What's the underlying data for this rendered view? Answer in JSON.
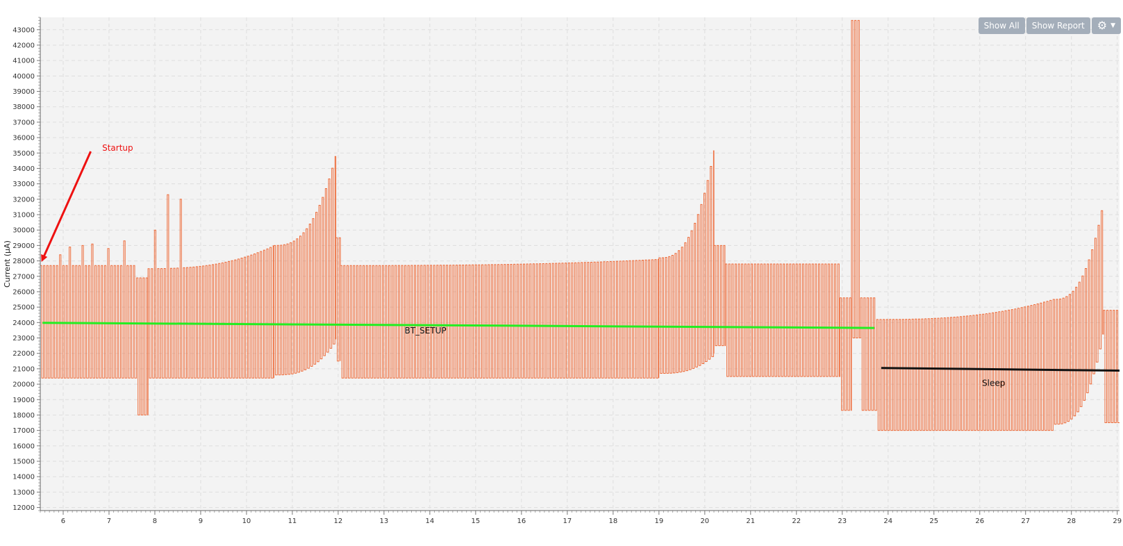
{
  "toolbar": {
    "show_all_label": "Show All",
    "show_report_label": "Show Report",
    "settings_icon": "gear-icon",
    "settings_caret_icon": "caret-down-icon"
  },
  "chart_data": {
    "type": "line",
    "title": "",
    "xlabel": "",
    "ylabel": "Current (µA)",
    "xlim": [
      5.5,
      29.05
    ],
    "ylim": [
      11800,
      43800
    ],
    "x_ticks": [
      6,
      7,
      8,
      9,
      10,
      11,
      12,
      13,
      14,
      15,
      16,
      17,
      18,
      19,
      20,
      21,
      22,
      23,
      24,
      25,
      26,
      27,
      28,
      29
    ],
    "y_ticks": [
      12000,
      13000,
      14000,
      15000,
      16000,
      17000,
      18000,
      19000,
      20000,
      21000,
      22000,
      23000,
      24000,
      25000,
      26000,
      27000,
      28000,
      29000,
      30000,
      31000,
      32000,
      33000,
      34000,
      35000,
      36000,
      37000,
      38000,
      39000,
      40000,
      41000,
      42000,
      43000
    ],
    "grid": true,
    "colors": {
      "signal": "#ee6a38",
      "bt_setup": "#22ee22",
      "sleep": "#111111",
      "startup": "#ee1111",
      "plot_bg": "#f3f3f3",
      "grid": "#dedede"
    },
    "series": [
      {
        "segments": [
          {
            "x0": 5.5,
            "x1": 7.6,
            "low": 20400,
            "high": 27700,
            "spikes": [
              [
                5.9,
                28400
              ],
              [
                6.15,
                28900
              ],
              [
                6.4,
                29000
              ],
              [
                6.65,
                29100
              ],
              [
                6.95,
                28800
              ],
              [
                7.35,
                29300
              ]
            ]
          },
          {
            "x0": 7.6,
            "x1": 7.85,
            "low": 18000,
            "high": 26900
          },
          {
            "x0": 7.85,
            "x1": 10.6,
            "low": 20400,
            "high": 27500,
            "spikes": [
              [
                8.0,
                30000
              ],
              [
                8.25,
                32300
              ],
              [
                8.55,
                32000
              ]
            ],
            "curve_end": 29000
          },
          {
            "x0": 10.6,
            "x1": 11.95,
            "low": 20600,
            "high": 29000,
            "curve_end": 35000,
            "low_end": 23000
          },
          {
            "x0": 11.95,
            "x1": 12.05,
            "low": 21500,
            "high": 29500
          },
          {
            "x0": 12.05,
            "x1": 19.0,
            "low": 20400,
            "high": 27700,
            "curve_end": 28100
          },
          {
            "x0": 19.0,
            "x1": 20.2,
            "low": 20700,
            "high": 28200,
            "curve_end": 35300,
            "low_end": 22000
          },
          {
            "x0": 20.2,
            "x1": 20.45,
            "low": 22500,
            "high": 29000
          },
          {
            "x0": 20.45,
            "x1": 22.95,
            "low": 20500,
            "high": 27800
          },
          {
            "x0": 22.95,
            "x1": 23.2,
            "low": 18300,
            "high": 25600
          },
          {
            "x0": 23.2,
            "x1": 23.4,
            "low": 23000,
            "high": 43600,
            "spikes": [
              [
                23.27,
                39800
              ],
              [
                23.3,
                43600
              ],
              [
                23.38,
                36200
              ]
            ]
          },
          {
            "x0": 23.4,
            "x1": 23.75,
            "low": 18300,
            "high": 25600
          },
          {
            "x0": 23.75,
            "x1": 27.6,
            "low": 17000,
            "high": 24200,
            "curve_end": 25500
          },
          {
            "x0": 27.6,
            "x1": 28.7,
            "low": 17400,
            "high": 25500,
            "curve_end": 32000,
            "low_end": 24000
          },
          {
            "x0": 28.7,
            "x1": 29.05,
            "low": 17500,
            "high": 24800
          }
        ]
      }
    ],
    "annotations": [
      {
        "text": "Startup",
        "x": 6.85,
        "y": 35150,
        "color": "#ee1111",
        "arrow_from": [
          6.6,
          35100
        ],
        "arrow_to": [
          5.55,
          28100
        ]
      },
      {
        "text": "BT_SETUP",
        "x": 13.45,
        "y": 23300,
        "color": "#111111",
        "line": [
          [
            5.55,
            23980
          ],
          [
            23.7,
            23650
          ]
        ],
        "line_color": "#22ee22"
      },
      {
        "text": "Sleep",
        "x": 26.05,
        "y": 19900,
        "color": "#111111",
        "line": [
          [
            23.85,
            21050
          ],
          [
            29.05,
            20880
          ]
        ],
        "line_color": "#111111"
      }
    ]
  }
}
